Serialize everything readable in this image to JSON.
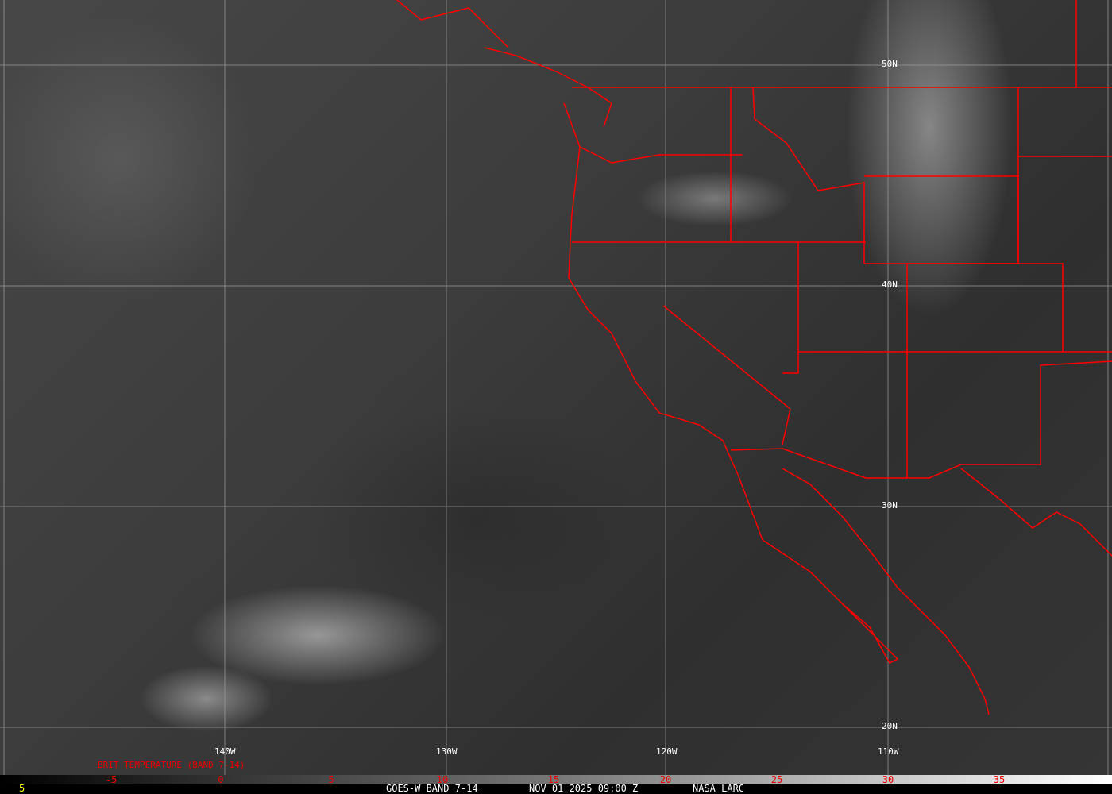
{
  "map": {
    "longitude_labels": [
      "140W",
      "130W",
      "120W",
      "110W"
    ],
    "latitude_labels": [
      "50N",
      "40N",
      "30N",
      "20N"
    ],
    "border_color": "#ff0000",
    "grid_color": "#a0a0a0"
  },
  "colorbar": {
    "title": "BRIT TEMPERATURE (BAND 7-14)",
    "ticks": [
      "-5",
      "0",
      "5",
      "10",
      "15",
      "20",
      "25",
      "30",
      "35"
    ],
    "tick_color": "#ff0000"
  },
  "footer": {
    "frame": "5",
    "satellite": "GOES-W BAND 7-14",
    "datetime": "NOV 01 2025 09:00 Z",
    "source": "NASA LARC"
  }
}
